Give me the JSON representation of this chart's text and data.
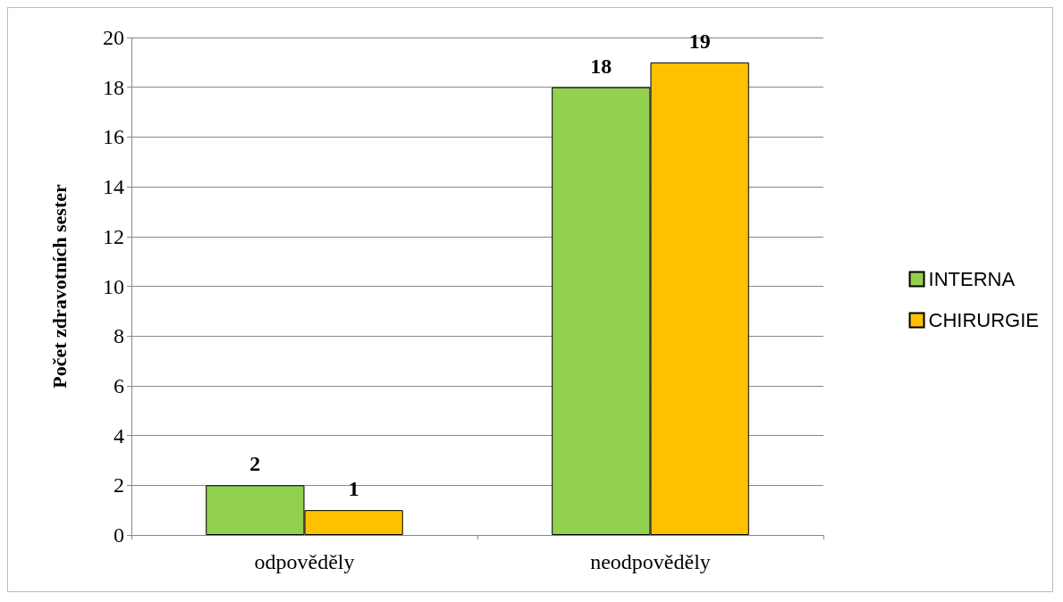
{
  "chart_data": {
    "type": "bar",
    "ylabel": "Počet zdravotních sester",
    "categories": [
      "odpověděly",
      "neodpověděly"
    ],
    "series": [
      {
        "name": "INTERNA",
        "color": "#92d050",
        "values": [
          2,
          18
        ]
      },
      {
        "name": "CHIRURGIE",
        "color": "#ffc000",
        "values": [
          1,
          19
        ]
      }
    ],
    "ylim": [
      0,
      20
    ],
    "yticks": [
      0,
      2,
      4,
      6,
      8,
      10,
      12,
      14,
      16,
      18,
      20
    ],
    "grid": "y",
    "legend": "right",
    "data_labels": true
  }
}
